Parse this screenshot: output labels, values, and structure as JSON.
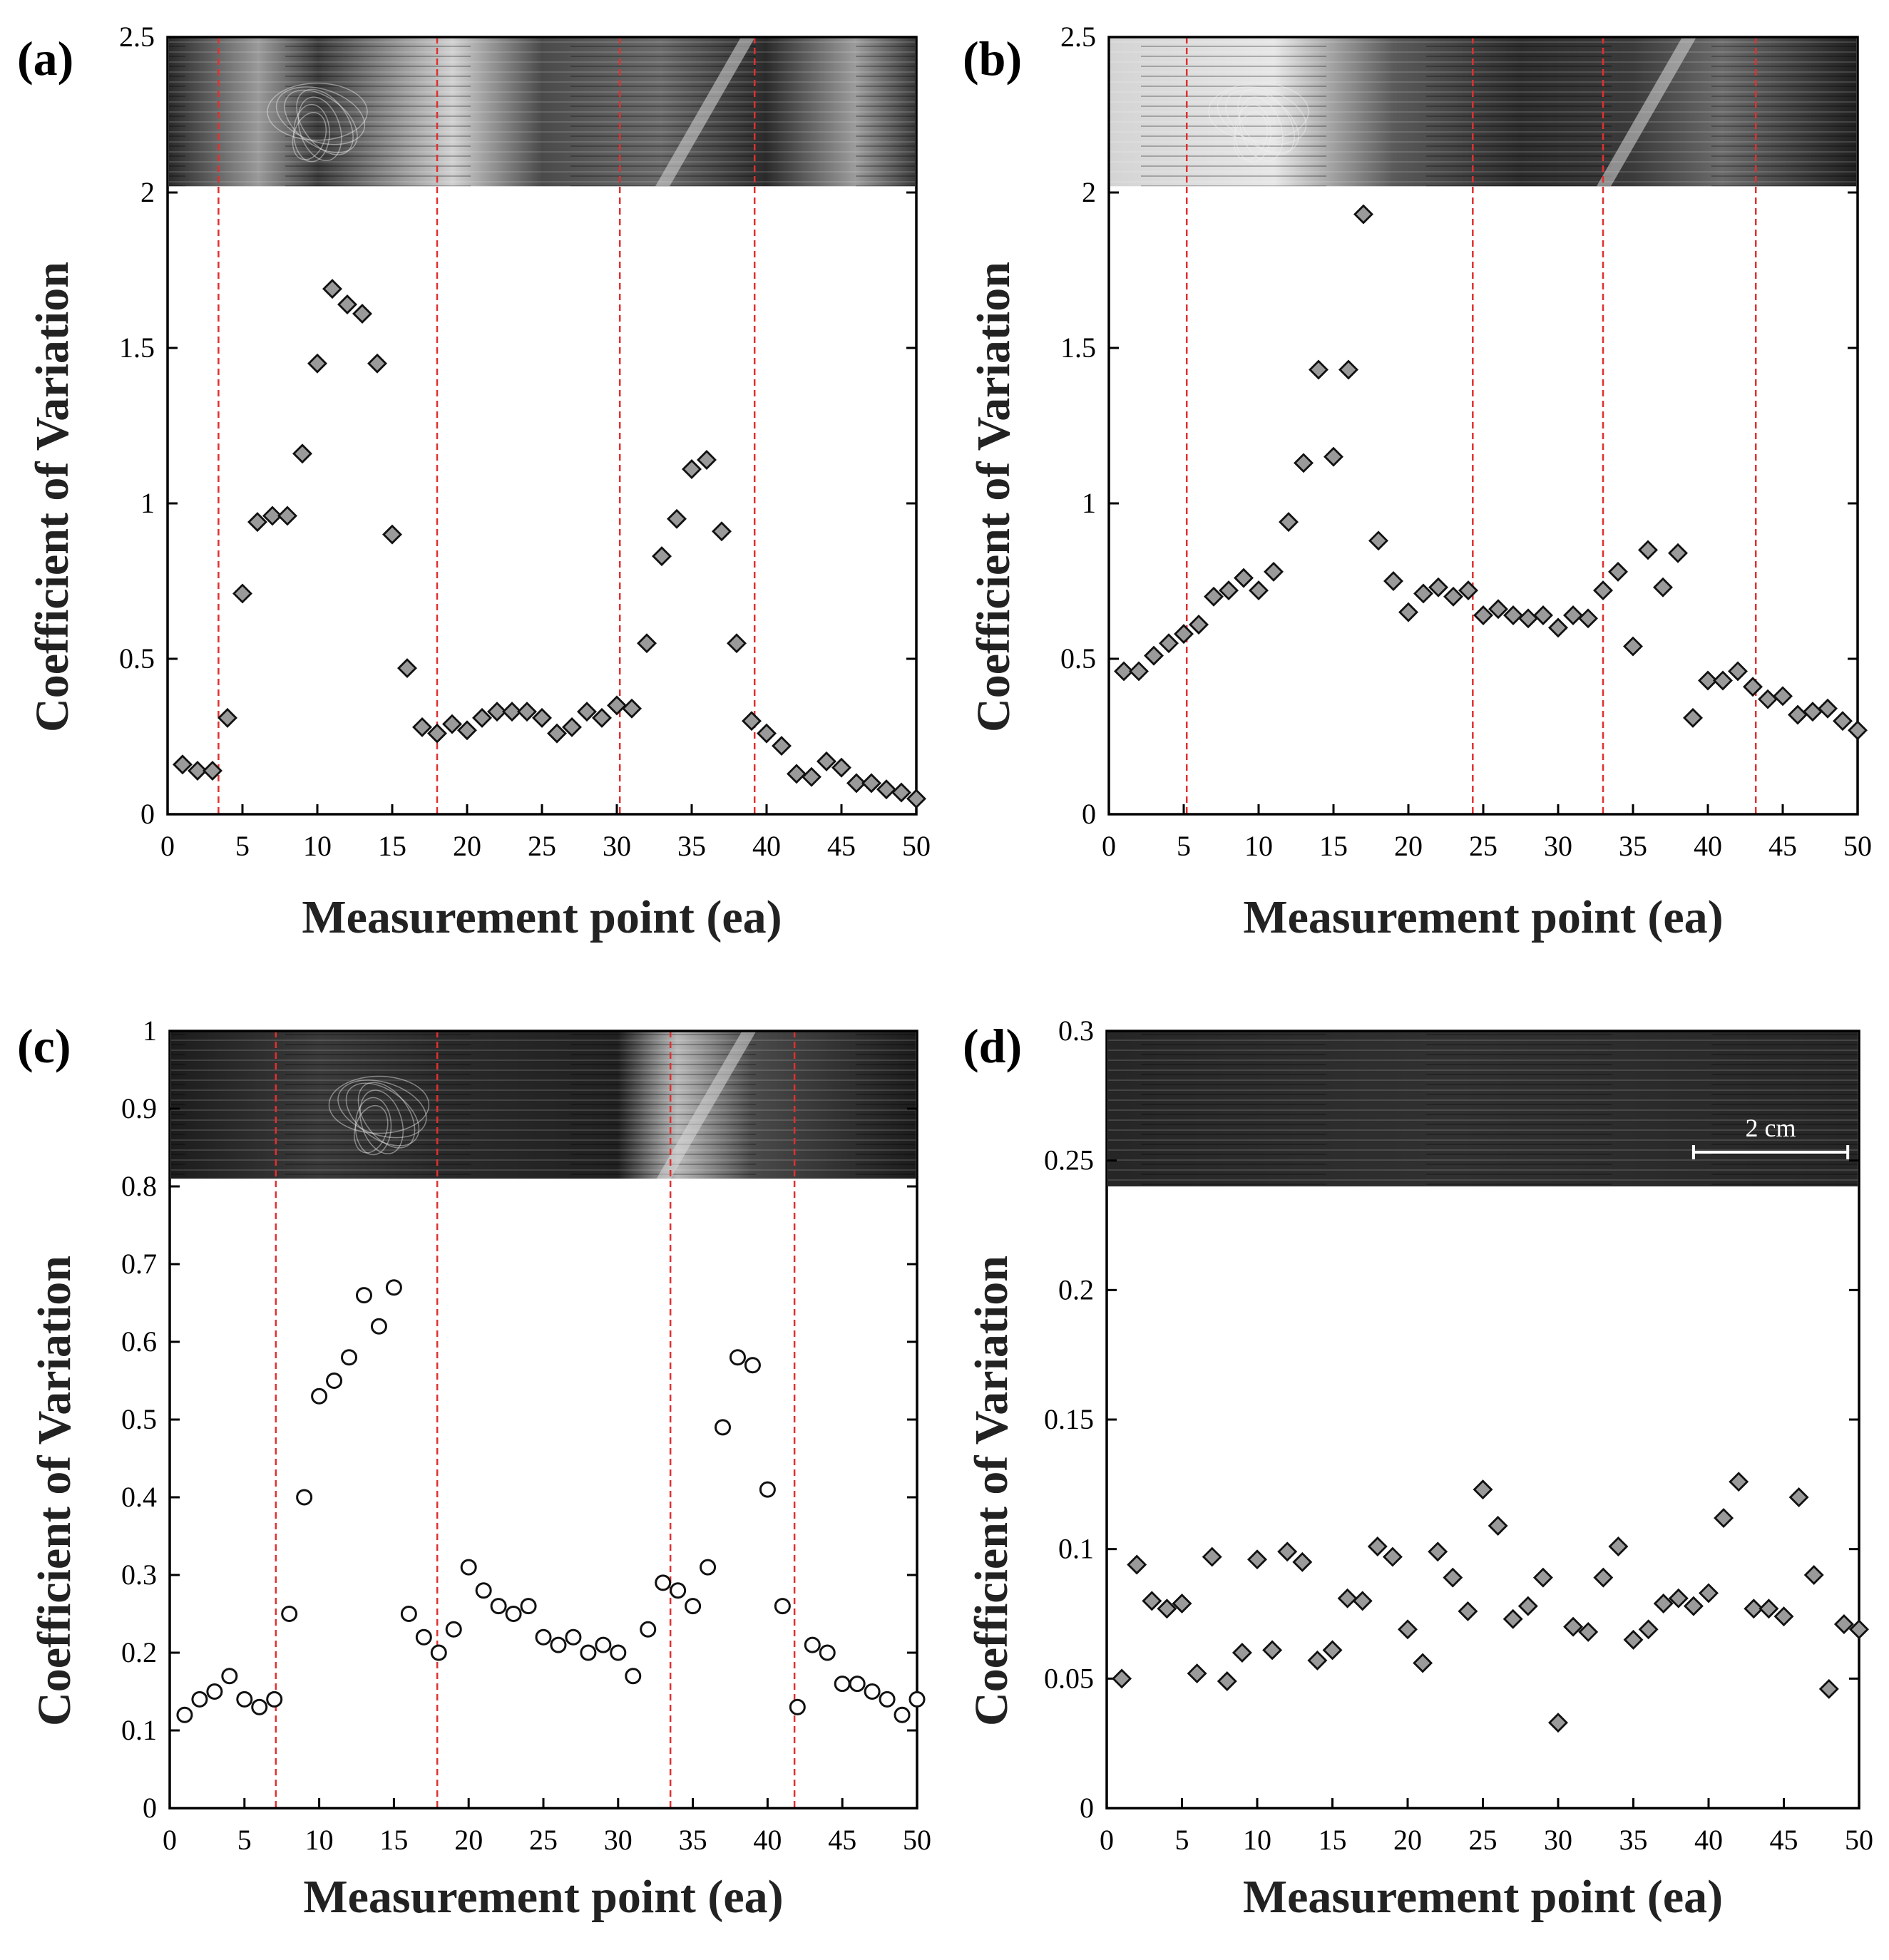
{
  "colors": {
    "marker_fill": "#9a9a9a",
    "marker_stroke": "#111111",
    "divider": "#e03030",
    "axis": "#000000",
    "photo_dark": "#1e1e1e",
    "photo_light": "#cfcfcf"
  },
  "scale_bar_label": "2 cm",
  "chart_data": [
    {
      "panel": "(a)",
      "type": "scatter",
      "marker": "diamond",
      "xlabel": "Measurement point (ea)",
      "ylabel": "Coefficient of Variation",
      "xlim": [
        0,
        50
      ],
      "ylim": [
        0,
        2.5
      ],
      "xticks": [
        0,
        5,
        10,
        15,
        20,
        25,
        30,
        35,
        40,
        45,
        50
      ],
      "yticks": [
        0,
        0.5,
        1,
        1.5,
        2,
        2.5
      ],
      "ytick_labels": [
        "0",
        "0.5",
        "1",
        "1.5",
        "2",
        "2.5"
      ],
      "image_bottom": 2.02,
      "dividers": [
        3.4,
        18.0,
        30.2,
        39.2
      ],
      "x": [
        1,
        2,
        3,
        4,
        5,
        6,
        7,
        8,
        9,
        10,
        11,
        12,
        13,
        14,
        15,
        16,
        17,
        18,
        19,
        20,
        21,
        22,
        23,
        24,
        25,
        26,
        27,
        28,
        29,
        30,
        31,
        32,
        33,
        34,
        35,
        36,
        37,
        38,
        39,
        40,
        41,
        42,
        43,
        44,
        45,
        46,
        47,
        48,
        49,
        50
      ],
      "y": [
        0.16,
        0.14,
        0.14,
        0.31,
        0.71,
        0.94,
        0.96,
        0.96,
        1.16,
        1.45,
        1.69,
        1.64,
        1.61,
        1.45,
        0.9,
        0.47,
        0.28,
        0.26,
        0.29,
        0.27,
        0.31,
        0.33,
        0.33,
        0.33,
        0.31,
        0.26,
        0.28,
        0.33,
        0.31,
        0.35,
        0.34,
        0.55,
        0.83,
        0.95,
        1.11,
        1.14,
        0.91,
        0.55,
        0.3,
        0.26,
        0.22,
        0.13,
        0.12,
        0.17,
        0.15,
        0.1,
        0.1,
        0.08,
        0.07,
        0.05
      ]
    },
    {
      "panel": "(b)",
      "type": "scatter",
      "marker": "diamond",
      "xlabel": "Measurement point (ea)",
      "ylabel": "Coefficient of Variation",
      "xlim": [
        0,
        50
      ],
      "ylim": [
        0,
        2.5
      ],
      "xticks": [
        0,
        5,
        10,
        15,
        20,
        25,
        30,
        35,
        40,
        45,
        50
      ],
      "yticks": [
        0,
        0.5,
        1,
        1.5,
        2,
        2.5
      ],
      "ytick_labels": [
        "0",
        "0.5",
        "1",
        "1.5",
        "2",
        "2.5"
      ],
      "image_bottom": 2.02,
      "dividers": [
        5.2,
        24.3,
        33.0,
        43.2
      ],
      "x": [
        1,
        2,
        3,
        4,
        5,
        6,
        7,
        8,
        9,
        10,
        11,
        12,
        13,
        14,
        15,
        16,
        17,
        18,
        19,
        20,
        21,
        22,
        23,
        24,
        25,
        26,
        27,
        28,
        29,
        30,
        31,
        32,
        33,
        34,
        35,
        36,
        37,
        38,
        39,
        40,
        41,
        42,
        43,
        44,
        45,
        46,
        47,
        48,
        49,
        50
      ],
      "y": [
        0.46,
        0.46,
        0.51,
        0.55,
        0.58,
        0.61,
        0.7,
        0.72,
        0.76,
        0.72,
        0.78,
        0.94,
        1.13,
        1.43,
        1.15,
        1.43,
        1.93,
        0.88,
        0.75,
        0.65,
        0.71,
        0.73,
        0.7,
        0.72,
        0.64,
        0.66,
        0.64,
        0.63,
        0.64,
        0.6,
        0.64,
        0.63,
        0.72,
        0.78,
        0.54,
        0.85,
        0.73,
        0.84,
        0.31,
        0.43,
        0.43,
        0.46,
        0.41,
        0.37,
        0.38,
        0.32,
        0.33,
        0.34,
        0.3,
        0.27
      ]
    },
    {
      "panel": "(c)",
      "type": "scatter",
      "marker": "circle",
      "xlabel": "Measurement point (ea)",
      "ylabel": "Coefficient of Variation",
      "xlim": [
        0,
        50
      ],
      "ylim": [
        0,
        1
      ],
      "xticks": [
        0,
        5,
        10,
        15,
        20,
        25,
        30,
        35,
        40,
        45,
        50
      ],
      "yticks": [
        0,
        0.1,
        0.2,
        0.3,
        0.4,
        0.5,
        0.6,
        0.7,
        0.8,
        0.9,
        1
      ],
      "ytick_labels": [
        "0",
        "0.1",
        "0.2",
        "0.3",
        "0.4",
        "0.5",
        "0.6",
        "0.7",
        "0.8",
        "0.9",
        "1"
      ],
      "image_bottom": 0.81,
      "dividers": [
        7.1,
        17.9,
        33.5,
        41.8
      ],
      "x": [
        1,
        2,
        3,
        4,
        5,
        6,
        7,
        8,
        9,
        10,
        11,
        12,
        13,
        14,
        15,
        16,
        17,
        18,
        19,
        20,
        21,
        22,
        23,
        24,
        25,
        26,
        27,
        28,
        29,
        30,
        31,
        32,
        33,
        34,
        35,
        36,
        37,
        38,
        39,
        40,
        41,
        42,
        43,
        44,
        45,
        46,
        47,
        48,
        49,
        50
      ],
      "y": [
        0.12,
        0.14,
        0.15,
        0.17,
        0.14,
        0.13,
        0.14,
        0.25,
        0.4,
        0.53,
        0.55,
        0.58,
        0.66,
        0.62,
        0.67,
        0.25,
        0.22,
        0.2,
        0.23,
        0.31,
        0.28,
        0.26,
        0.25,
        0.26,
        0.22,
        0.21,
        0.22,
        0.2,
        0.21,
        0.2,
        0.17,
        0.23,
        0.29,
        0.28,
        0.26,
        0.31,
        0.49,
        0.58,
        0.57,
        0.41,
        0.26,
        0.13,
        0.21,
        0.2,
        0.16,
        0.16,
        0.15,
        0.14,
        0.12,
        0.14
      ]
    },
    {
      "panel": "(d)",
      "type": "scatter",
      "marker": "diamond",
      "xlabel": "Measurement point (ea)",
      "ylabel": "Coefficient of Variation",
      "xlim": [
        0,
        50
      ],
      "ylim": [
        0,
        0.3
      ],
      "xticks": [
        0,
        5,
        10,
        15,
        20,
        25,
        30,
        35,
        40,
        45,
        50
      ],
      "yticks": [
        0,
        0.05,
        0.1,
        0.15,
        0.2,
        0.25,
        0.3
      ],
      "ytick_labels": [
        "0",
        "0.05",
        "0.1",
        "0.15",
        "0.2",
        "0.25",
        "0.3"
      ],
      "image_bottom": 0.24,
      "dividers": [],
      "x": [
        1,
        2,
        3,
        4,
        5,
        6,
        7,
        8,
        9,
        10,
        11,
        12,
        13,
        14,
        15,
        16,
        17,
        18,
        19,
        20,
        21,
        22,
        23,
        24,
        25,
        26,
        27,
        28,
        29,
        30,
        31,
        32,
        33,
        34,
        35,
        36,
        37,
        38,
        39,
        40,
        41,
        42,
        43,
        44,
        45,
        46,
        47,
        48,
        49,
        50
      ],
      "y": [
        0.05,
        0.094,
        0.08,
        0.077,
        0.079,
        0.052,
        0.097,
        0.049,
        0.06,
        0.096,
        0.061,
        0.099,
        0.095,
        0.057,
        0.061,
        0.081,
        0.08,
        0.101,
        0.097,
        0.069,
        0.056,
        0.099,
        0.089,
        0.076,
        0.123,
        0.109,
        0.073,
        0.078,
        0.089,
        0.033,
        0.07,
        0.068,
        0.089,
        0.101,
        0.065,
        0.069,
        0.079,
        0.081,
        0.078,
        0.083,
        0.112,
        0.126,
        0.077,
        0.077,
        0.074,
        0.12,
        0.09,
        0.046,
        0.071,
        0.069
      ]
    }
  ]
}
